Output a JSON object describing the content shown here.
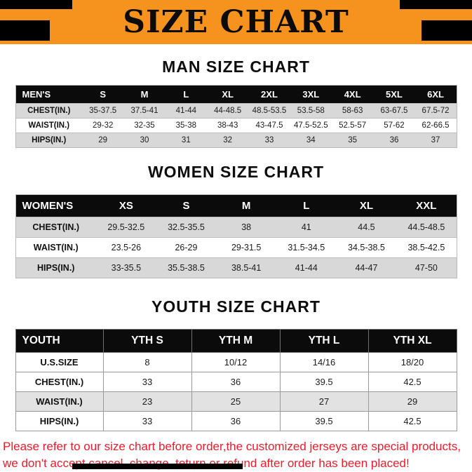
{
  "banner": {
    "title": "SIZE CHART"
  },
  "sections": {
    "men": {
      "heading": "MAN SIZE CHART",
      "table": {
        "header": [
          "MEN'S",
          "S",
          "M",
          "L",
          "XL",
          "2XL",
          "3XL",
          "4XL",
          "5XL",
          "6XL"
        ],
        "rows": [
          [
            "CHEST(IN.)",
            "35-37.5",
            "37.5-41",
            "41-44",
            "44-48.5",
            "48.5-53.5",
            "53.5-58",
            "58-63",
            "63-67.5",
            "67.5-72"
          ],
          [
            "WAIST(IN.)",
            "29-32",
            "32-35",
            "35-38",
            "38-43",
            "43-47.5",
            "47.5-52.5",
            "52.5-57",
            "57-62",
            "62-66.5"
          ],
          [
            "HIPS(IN.)",
            "29",
            "30",
            "31",
            "32",
            "33",
            "34",
            "35",
            "36",
            "37"
          ]
        ]
      }
    },
    "women": {
      "heading": "WOMEN SIZE CHART",
      "table": {
        "header": [
          "WOMEN'S",
          "XS",
          "S",
          "M",
          "L",
          "XL",
          "XXL"
        ],
        "rows": [
          [
            "CHEST(IN.)",
            "29.5-32.5",
            "32.5-35.5",
            "38",
            "41",
            "44.5",
            "44.5-48.5"
          ],
          [
            "WAIST(IN.)",
            "23.5-26",
            "26-29",
            "29-31.5",
            "31.5-34.5",
            "34.5-38.5",
            "38.5-42.5"
          ],
          [
            "HIPS(IN.)",
            "33-35.5",
            "35.5-38.5",
            "38.5-41",
            "41-44",
            "44-47",
            "47-50"
          ]
        ]
      }
    },
    "youth": {
      "heading": "YOUTH SIZE CHART",
      "table": {
        "header": [
          "YOUTH",
          "YTH S",
          "YTH M",
          "YTH L",
          "YTH XL"
        ],
        "rows": [
          [
            "U.S.SIZE",
            "8",
            "10/12",
            "14/16",
            "18/20"
          ],
          [
            "CHEST(IN.)",
            "33",
            "36",
            "39.5",
            "42.5"
          ],
          [
            "WAIST(IN.)",
            "23",
            "25",
            "27",
            "29"
          ],
          [
            "HIPS(IN.)",
            "33",
            "36",
            "39.5",
            "42.5"
          ]
        ]
      }
    }
  },
  "footer": {
    "line1": "Please refer to our size chart before order,the customized jerseys are special products,",
    "line2": "we don't accept cancel, change, teturn or refund after order has been placed!"
  },
  "colors": {
    "banner_bg": "#f6921e",
    "header_bg": "#0b0b0b",
    "stripe": "#d8d8d8",
    "footer_text": "#ea1c2c"
  }
}
